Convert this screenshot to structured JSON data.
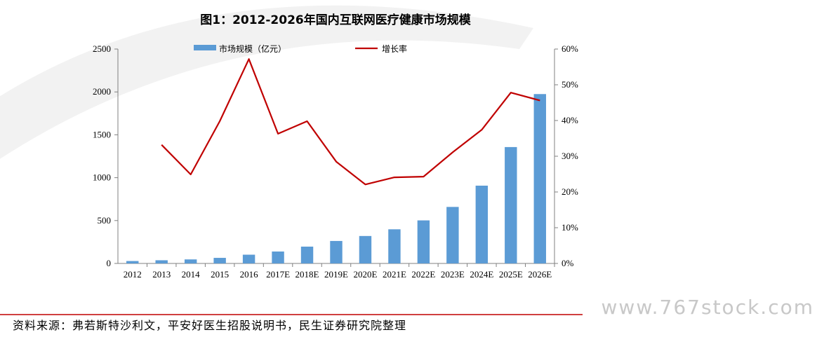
{
  "title": "图1：2012-2026年国内互联网医疗健康市场规模",
  "source": "资料来源：弗若斯特沙利文，平安好医生招股说明书，民生证券研究院整理",
  "watermark": "www.767stock.com",
  "colors": {
    "bar": "#5b9bd5",
    "line": "#c00000",
    "axis": "#808080",
    "separator": "#c00000"
  },
  "chart_data": {
    "type": "bar",
    "categories": [
      "2012",
      "2013",
      "2014",
      "2015",
      "2016",
      "2017E",
      "2018E",
      "2019E",
      "2020E",
      "2021E",
      "2022E",
      "2023E",
      "2024E",
      "2025E",
      "2026E"
    ],
    "series": [
      {
        "name": "市场规模（亿元）",
        "type": "bar",
        "axis": "left",
        "values": [
          28,
          37,
          47,
          65,
          102,
          139,
          196,
          262,
          320,
          398,
          502,
          659,
          907,
          1357,
          1975
        ]
      },
      {
        "name": "增长率",
        "type": "line",
        "axis": "right",
        "values": [
          null,
          0.332,
          0.249,
          0.398,
          0.572,
          0.363,
          0.398,
          0.285,
          0.221,
          0.241,
          0.243,
          0.311,
          0.374,
          0.478,
          0.456
        ]
      }
    ],
    "left_axis": {
      "ylim": [
        0,
        2500
      ],
      "ticks": [
        "0",
        "500",
        "1000",
        "1500",
        "2000",
        "2500"
      ]
    },
    "right_axis": {
      "ylim": [
        0,
        0.6
      ],
      "ticks": [
        "0%",
        "10%",
        "20%",
        "30%",
        "40%",
        "50%",
        "60%"
      ]
    },
    "legend": "top-center",
    "grid": false
  }
}
